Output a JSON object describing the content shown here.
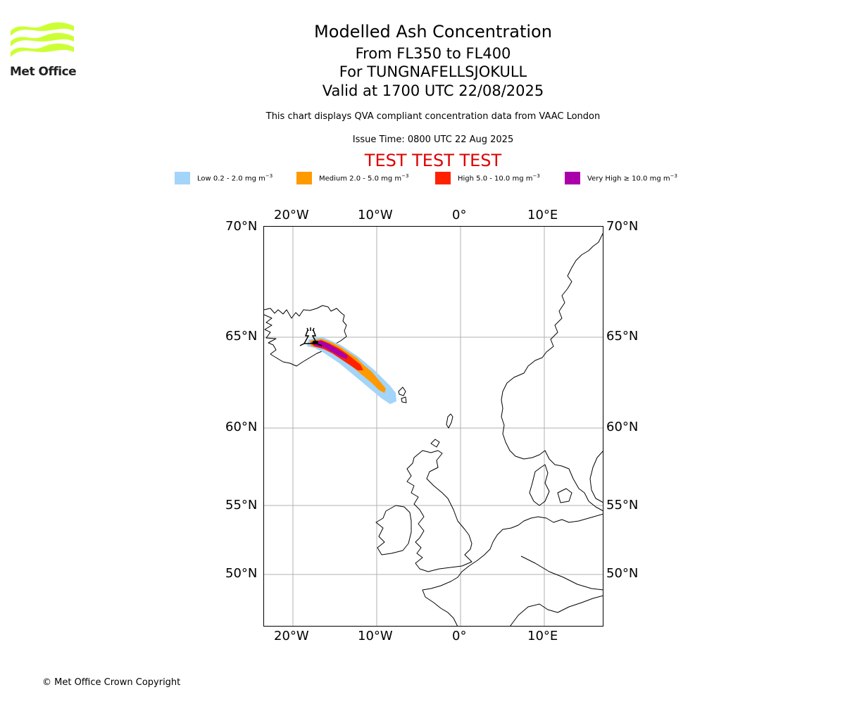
{
  "header": {
    "title": "Modelled Ash Concentration",
    "line1": "From FL350 to FL400",
    "line2": "For TUNGNAFELLSJOKULL",
    "line3": "Valid at 1700 UTC 22/08/2025",
    "description": "This chart displays QVA compliant concentration data from VAAC London",
    "issue_time": "Issue Time: 0800 UTC 22 Aug 2025",
    "test_banner": "TEST TEST TEST"
  },
  "logo": {
    "text": "Met Office",
    "color": "#ccff33"
  },
  "legend": [
    {
      "label": "Low 0.2 - 2.0 mg m",
      "color": "#a3d4fa"
    },
    {
      "label": "Medium 2.0 - 5.0 mg m",
      "color": "#ff9900"
    },
    {
      "label": "High 5.0 - 10.0 mg m",
      "color": "#ff2200"
    },
    {
      "label": "Very High ≥ 10.0 mg m",
      "color": "#aa00aa"
    }
  ],
  "legend_unit_exp": "−3",
  "map": {
    "lon_labels": [
      "20°W",
      "10°W",
      "0°",
      "10°E"
    ],
    "lat_labels": [
      "70°N",
      "65°N",
      "60°N",
      "55°N",
      "50°N"
    ],
    "lon_range": [
      -23.5,
      17
    ],
    "lat_range": [
      47,
      70
    ],
    "gridlines": true,
    "volcano_icon": "volcano-icon"
  },
  "footer": {
    "copyright": "© Met Office Crown Copyright"
  }
}
